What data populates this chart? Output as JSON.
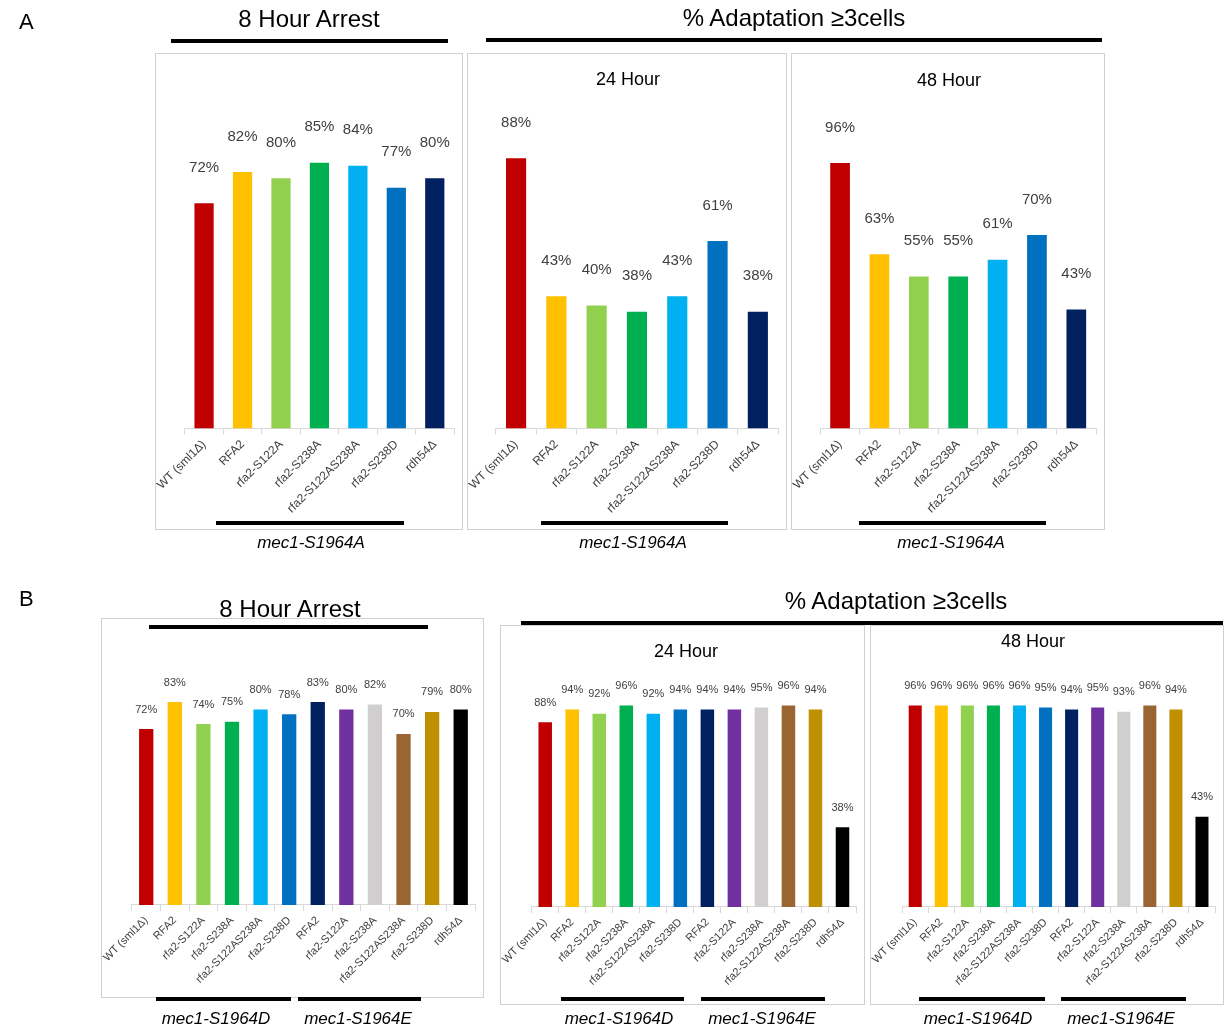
{
  "chart_data": [
    {
      "type": "bar",
      "title": "8 Hour Arrest",
      "annotations": [
        "A",
        "mec1-S1964A"
      ],
      "categories": [
        "WT (sml1Δ)",
        "RFA2",
        "rfa2-S122A",
        "rfa2-S238A",
        "rfa2-S122AS238A",
        "rfa2-S238D",
        "rdh54Δ"
      ],
      "values": [
        72,
        82,
        80,
        85,
        84,
        77,
        80
      ],
      "value_labels": [
        "72%",
        "82%",
        "80%",
        "85%",
        "84%",
        "77%",
        "80%"
      ],
      "colors": [
        "#c00000",
        "#ffc000",
        "#92d050",
        "#00b050",
        "#00b0f0",
        "#0070c0",
        "#002060"
      ],
      "grid": false,
      "legend": false,
      "tick_labels": "x"
    },
    {
      "type": "bar",
      "title": "% Adaptation ≥3cells",
      "subtitle": "24 Hour",
      "annotations": [
        "mec1-S1964A"
      ],
      "categories": [
        "WT (sml1Δ)",
        "RFA2",
        "rfa2-S122A",
        "rfa2-S238A",
        "rfa2-S122AS238A",
        "rfa2-S238D",
        "rdh54Δ"
      ],
      "values": [
        88,
        43,
        40,
        38,
        43,
        61,
        38
      ],
      "value_labels": [
        "88%",
        "43%",
        "40%",
        "38%",
        "43%",
        "61%",
        "38%"
      ],
      "colors": [
        "#c00000",
        "#ffc000",
        "#92d050",
        "#00b050",
        "#00b0f0",
        "#0070c0",
        "#002060"
      ],
      "grid": false,
      "legend": false,
      "tick_labels": "x"
    },
    {
      "type": "bar",
      "subtitle": "48 Hour",
      "annotations": [
        "mec1-S1964A"
      ],
      "categories": [
        "WT (sml1Δ)",
        "RFA2",
        "rfa2-S122A",
        "rfa2-S238A",
        "rfa2-S122AS238A",
        "rfa2-S238D",
        "rdh54Δ"
      ],
      "values": [
        96,
        63,
        55,
        55,
        61,
        70,
        43
      ],
      "value_labels": [
        "96%",
        "63%",
        "55%",
        "55%",
        "61%",
        "70%",
        "43%"
      ],
      "colors": [
        "#c00000",
        "#ffc000",
        "#92d050",
        "#00b050",
        "#00b0f0",
        "#0070c0",
        "#002060"
      ],
      "grid": false,
      "legend": false,
      "tick_labels": "x"
    },
    {
      "type": "bar",
      "title": "8 Hour Arrest",
      "annotations": [
        "B",
        "mec1-S1964D",
        "mec1-S1964E"
      ],
      "categories": [
        "WT (sml1Δ)",
        "RFA2",
        "rfa2-S122A",
        "rfa2-S238A",
        "rfa2-S122AS238A",
        "rfa2-S238D",
        "RFA2",
        "rfa2-S122A",
        "rfa2-S238A",
        "rfa2-S122AS238A",
        "rfa2-S238D",
        "rdh54Δ"
      ],
      "values": [
        72,
        83,
        74,
        75,
        80,
        78,
        83,
        80,
        82,
        70,
        79,
        80
      ],
      "value_labels": [
        "72%",
        "83%",
        "74%",
        "75%",
        "80%",
        "78%",
        "83%",
        "80%",
        "82%",
        "70%",
        "79%",
        "80%"
      ],
      "colors": [
        "#c00000",
        "#ffc000",
        "#92d050",
        "#00b050",
        "#00b0f0",
        "#0070c0",
        "#002060",
        "#7030a0",
        "#d0cece",
        "#996633",
        "#bf9000",
        "#000000"
      ],
      "grid": false,
      "legend": false,
      "tick_labels": "x"
    },
    {
      "type": "bar",
      "title": "% Adaptation ≥3cells",
      "subtitle": "24 Hour",
      "annotations": [
        "mec1-S1964D",
        "mec1-S1964E"
      ],
      "categories": [
        "WT (sml1Δ)",
        "RFA2",
        "rfa2-S122A",
        "rfa2-S238A",
        "rfa2-S122AS238A",
        "rfa2-S238D",
        "RFA2",
        "rfa2-S122A",
        "rfa2-S238A",
        "rfa2-S122AS238A",
        "rfa2-S238D",
        "rdh54Δ"
      ],
      "values": [
        88,
        94,
        92,
        96,
        92,
        94,
        94,
        94,
        95,
        96,
        94,
        38
      ],
      "value_labels": [
        "88%",
        "94%",
        "92%",
        "96%",
        "92%",
        "94%",
        "94%",
        "94%",
        "95%",
        "96%",
        "94%",
        "38%"
      ],
      "colors": [
        "#c00000",
        "#ffc000",
        "#92d050",
        "#00b050",
        "#00b0f0",
        "#0070c0",
        "#002060",
        "#7030a0",
        "#d0cece",
        "#996633",
        "#bf9000",
        "#000000"
      ],
      "grid": false,
      "legend": false,
      "tick_labels": "x"
    },
    {
      "type": "bar",
      "subtitle": "48 Hour",
      "annotations": [
        "mec1-S1964D",
        "mec1-S1964E"
      ],
      "categories": [
        "WT (sml1Δ)",
        "RFA2",
        "rfa2-S122A",
        "rfa2-S238A",
        "rfa2-S122AS238A",
        "rfa2-S238D",
        "RFA2",
        "rfa2-S122A",
        "rfa2-S238A",
        "rfa2-S122AS238A",
        "rfa2-S238D",
        "rdh54Δ"
      ],
      "values": [
        96,
        96,
        96,
        96,
        96,
        95,
        94,
        95,
        93,
        96,
        94,
        43
      ],
      "value_labels": [
        "96%",
        "96%",
        "96%",
        "96%",
        "96%",
        "95%",
        "94%",
        "95%",
        "93%",
        "96%",
        "94%",
        "43%"
      ],
      "colors": [
        "#c00000",
        "#ffc000",
        "#92d050",
        "#00b050",
        "#00b0f0",
        "#0070c0",
        "#002060",
        "#7030a0",
        "#d0cece",
        "#996633",
        "#bf9000",
        "#000000"
      ],
      "grid": false,
      "legend": false,
      "tick_labels": "x"
    }
  ]
}
